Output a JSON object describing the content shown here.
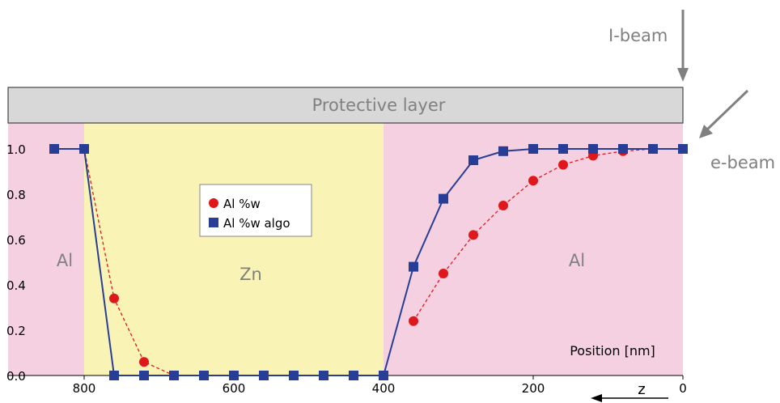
{
  "labels": {
    "ibeam": "I-beam",
    "ebeam": "e-beam",
    "protective_layer": "Protective layer",
    "region_left": "Al",
    "region_mid": "Zn",
    "region_right": "Al",
    "position": "Position [nm]",
    "z": "z"
  },
  "colors": {
    "al_region": "#f5d0e1",
    "zn_region": "#faf3b6",
    "protective_fill": "#d8d8d8",
    "arrow": "#808080",
    "series_dots": "#e0181b",
    "series_squares": "#283e96"
  },
  "chart_data": {
    "type": "line",
    "title": "",
    "xlabel": "Position [nm]",
    "ylabel": "",
    "x_reversed": true,
    "xlim": [
      850,
      0
    ],
    "ylim": [
      0,
      1.05
    ],
    "xticks": [
      "800",
      "600",
      "400",
      "200",
      "0"
    ],
    "yticks": [
      "0.0",
      "0.2",
      "0.4",
      "0.6",
      "0.8",
      "1.0"
    ],
    "regions": [
      {
        "label": "Al",
        "from": 850,
        "to": 800
      },
      {
        "label": "Zn",
        "from": 800,
        "to": 400
      },
      {
        "label": "Al",
        "from": 400,
        "to": 0
      }
    ],
    "legend_position": "upper-center",
    "series": [
      {
        "name": "Al %w",
        "style": "dashed-circles",
        "x": [
          840,
          800,
          760,
          720,
          680
        ],
        "y": [
          1.0,
          1.0,
          0.34,
          0.06,
          0.0
        ]
      },
      {
        "name": "Al %w",
        "style": "dashed-circles",
        "x": [
          360,
          320,
          280,
          240,
          200,
          160,
          120,
          80,
          40,
          0
        ],
        "y": [
          0.24,
          0.45,
          0.62,
          0.75,
          0.86,
          0.93,
          0.97,
          0.99,
          1.0,
          1.0
        ]
      },
      {
        "name": "Al %w algo",
        "style": "solid-squares",
        "x": [
          840,
          800,
          760,
          720,
          680,
          640,
          600,
          560,
          520,
          480,
          440,
          400,
          360,
          320,
          280,
          240,
          200,
          160,
          120,
          80,
          40,
          0
        ],
        "y": [
          1.0,
          1.0,
          0.0,
          0.0,
          0.0,
          0.0,
          0.0,
          0.0,
          0.0,
          0.0,
          0.0,
          0.0,
          0.48,
          0.78,
          0.95,
          0.99,
          1.0,
          1.0,
          1.0,
          1.0,
          1.0,
          1.0
        ]
      }
    ]
  }
}
